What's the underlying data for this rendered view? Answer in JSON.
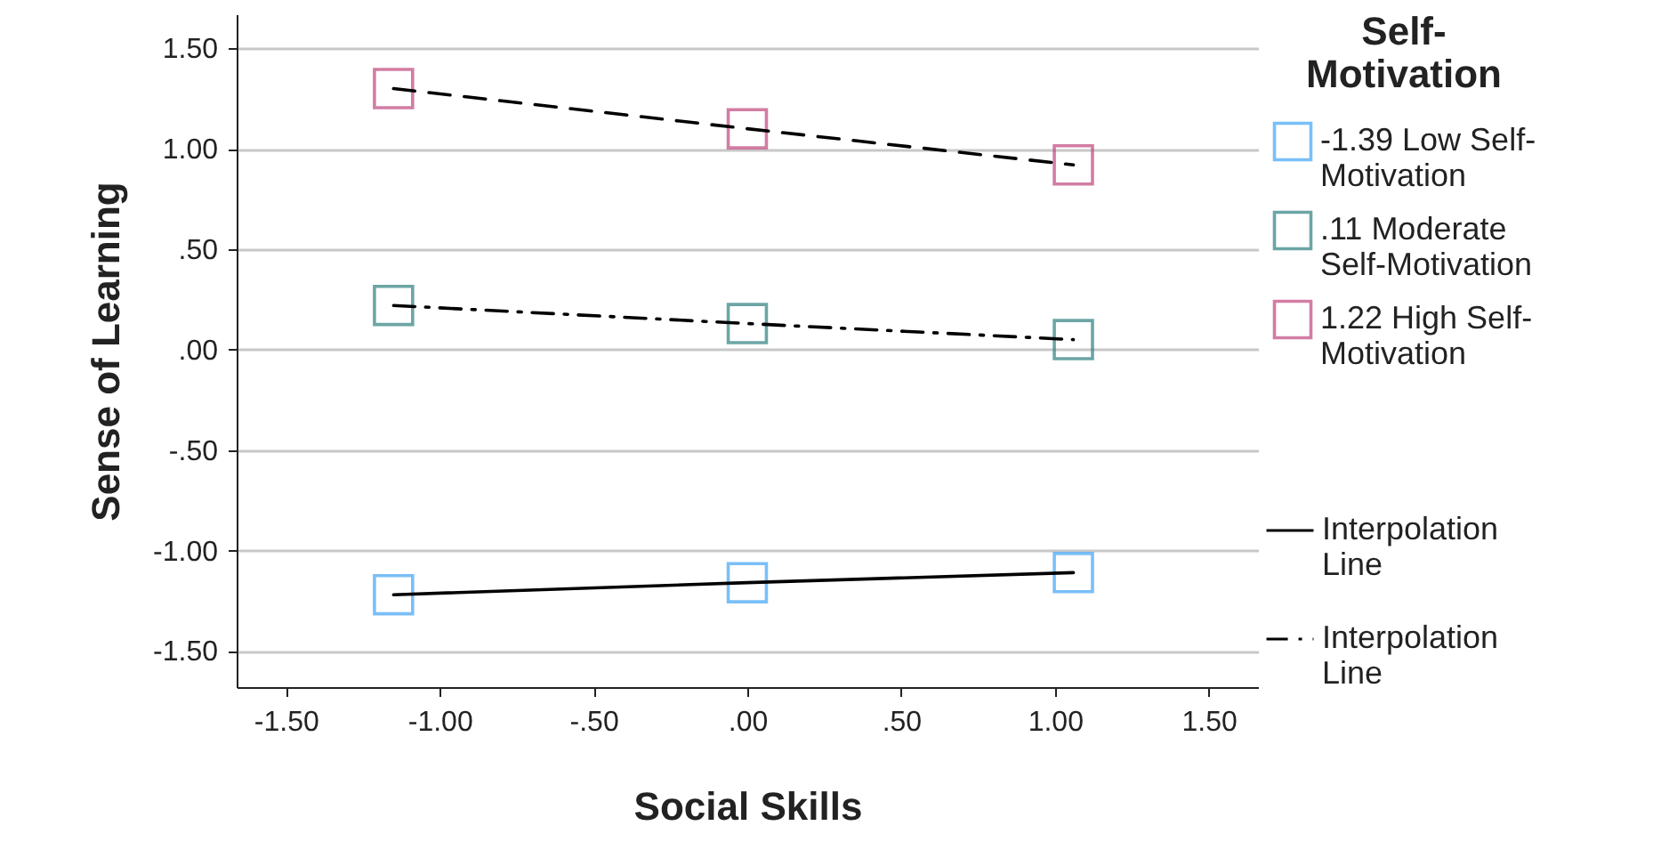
{
  "chart_data": {
    "type": "scatter",
    "xlabel": "Social Skills",
    "ylabel": "Sense of Learning",
    "legend_title": "Self-Motivation",
    "legend": "right",
    "grid": "y",
    "marker": "square",
    "x": [
      -1.15,
      0,
      1.06
    ],
    "xlim": [
      -1.66,
      1.66
    ],
    "ylim": [
      -1.68,
      1.67
    ],
    "xticks": [
      {
        "value": -1.5,
        "label": "-1.50"
      },
      {
        "value": -1,
        "label": "-1.00"
      },
      {
        "value": -0.5,
        "label": "-.50"
      },
      {
        "value": 0,
        "label": ".00"
      },
      {
        "value": 0.5,
        "label": ".50"
      },
      {
        "value": 1,
        "label": "1.00"
      },
      {
        "value": 1.5,
        "label": "1.50"
      }
    ],
    "yticks": [
      {
        "value": -1.5,
        "label": "-1.50"
      },
      {
        "value": -1,
        "label": "-1.00"
      },
      {
        "value": -0.5,
        "label": "-.50"
      },
      {
        "value": 0,
        "label": ".00"
      },
      {
        "value": 0.5,
        "label": ".50"
      },
      {
        "value": 1,
        "label": "1.00"
      },
      {
        "value": 1.5,
        "label": "1.50"
      }
    ],
    "series": [
      {
        "name": "-1.39 Low Self-Motivation",
        "color": "#42a5f5",
        "values": [
          -1.22,
          -1.16,
          -1.11
        ]
      },
      {
        "name": ".11 Moderate Self-Motivation",
        "color": "#2f8080",
        "values": [
          0.22,
          0.13,
          0.05
        ]
      },
      {
        "name": "1.22 High Self-Motivation",
        "color": "#c0477d",
        "values": [
          1.3,
          1.1,
          0.92
        ]
      },
      {
        "name": "Interpolation Line",
        "type": "line",
        "color": "#000000",
        "line_style": "solid",
        "marker": "none",
        "values": [
          -1.22,
          -1.16,
          -1.11
        ]
      },
      {
        "name": "Interpolation Line",
        "type": "line",
        "color": "#000000",
        "line_style": "dotted",
        "marker": "none",
        "values": [
          0.22,
          0.13,
          0.05
        ]
      },
      {
        "type": "line",
        "color": "#000000",
        "line_style": "dashed",
        "marker": "none",
        "values": [
          1.3,
          1.1,
          0.92
        ]
      }
    ]
  }
}
